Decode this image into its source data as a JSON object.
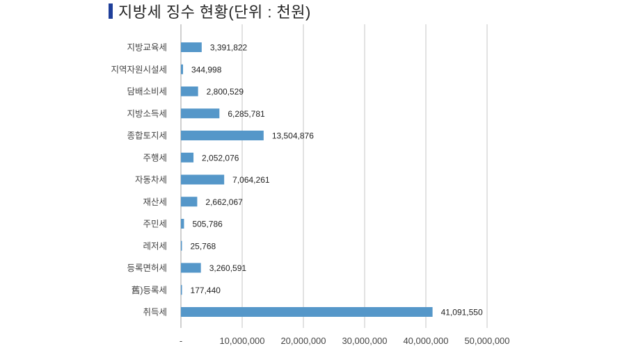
{
  "chart_data": {
    "type": "bar",
    "orientation": "horizontal",
    "title": "지방세 징수 현황(단위 : 천원)",
    "xlabel": "",
    "ylabel": "",
    "xlim": [
      0,
      50000000
    ],
    "grid": true,
    "categories": [
      "지방교육세",
      "지역자원시설세",
      "담배소비세",
      "지방소득세",
      "종합토지세",
      "주행세",
      "자동차세",
      "재산세",
      "주민세",
      "레저세",
      "등록면허세",
      "舊)등록세",
      "취득세"
    ],
    "values": [
      3391822,
      344998,
      2800529,
      6285781,
      13504876,
      2052076,
      7064261,
      2662067,
      505786,
      25768,
      3260591,
      177440,
      41091550
    ],
    "value_labels": [
      "3,391,822",
      "344,998",
      "2,800,529",
      "6,285,781",
      "13,504,876",
      "2,052,076",
      "7,064,261",
      "2,662,067",
      "505,786",
      "25,768",
      "3,260,591",
      "177,440",
      "41,091,550"
    ],
    "x_ticks": [
      0,
      10000000,
      20000000,
      30000000,
      40000000,
      50000000
    ],
    "x_tick_labels": [
      "-",
      "10,000,000",
      "20,000,000",
      "30,000,000",
      "40,000,000",
      "50,000,000"
    ],
    "bar_color": "#5597c9",
    "gridline_color": "#d9d9d9"
  }
}
